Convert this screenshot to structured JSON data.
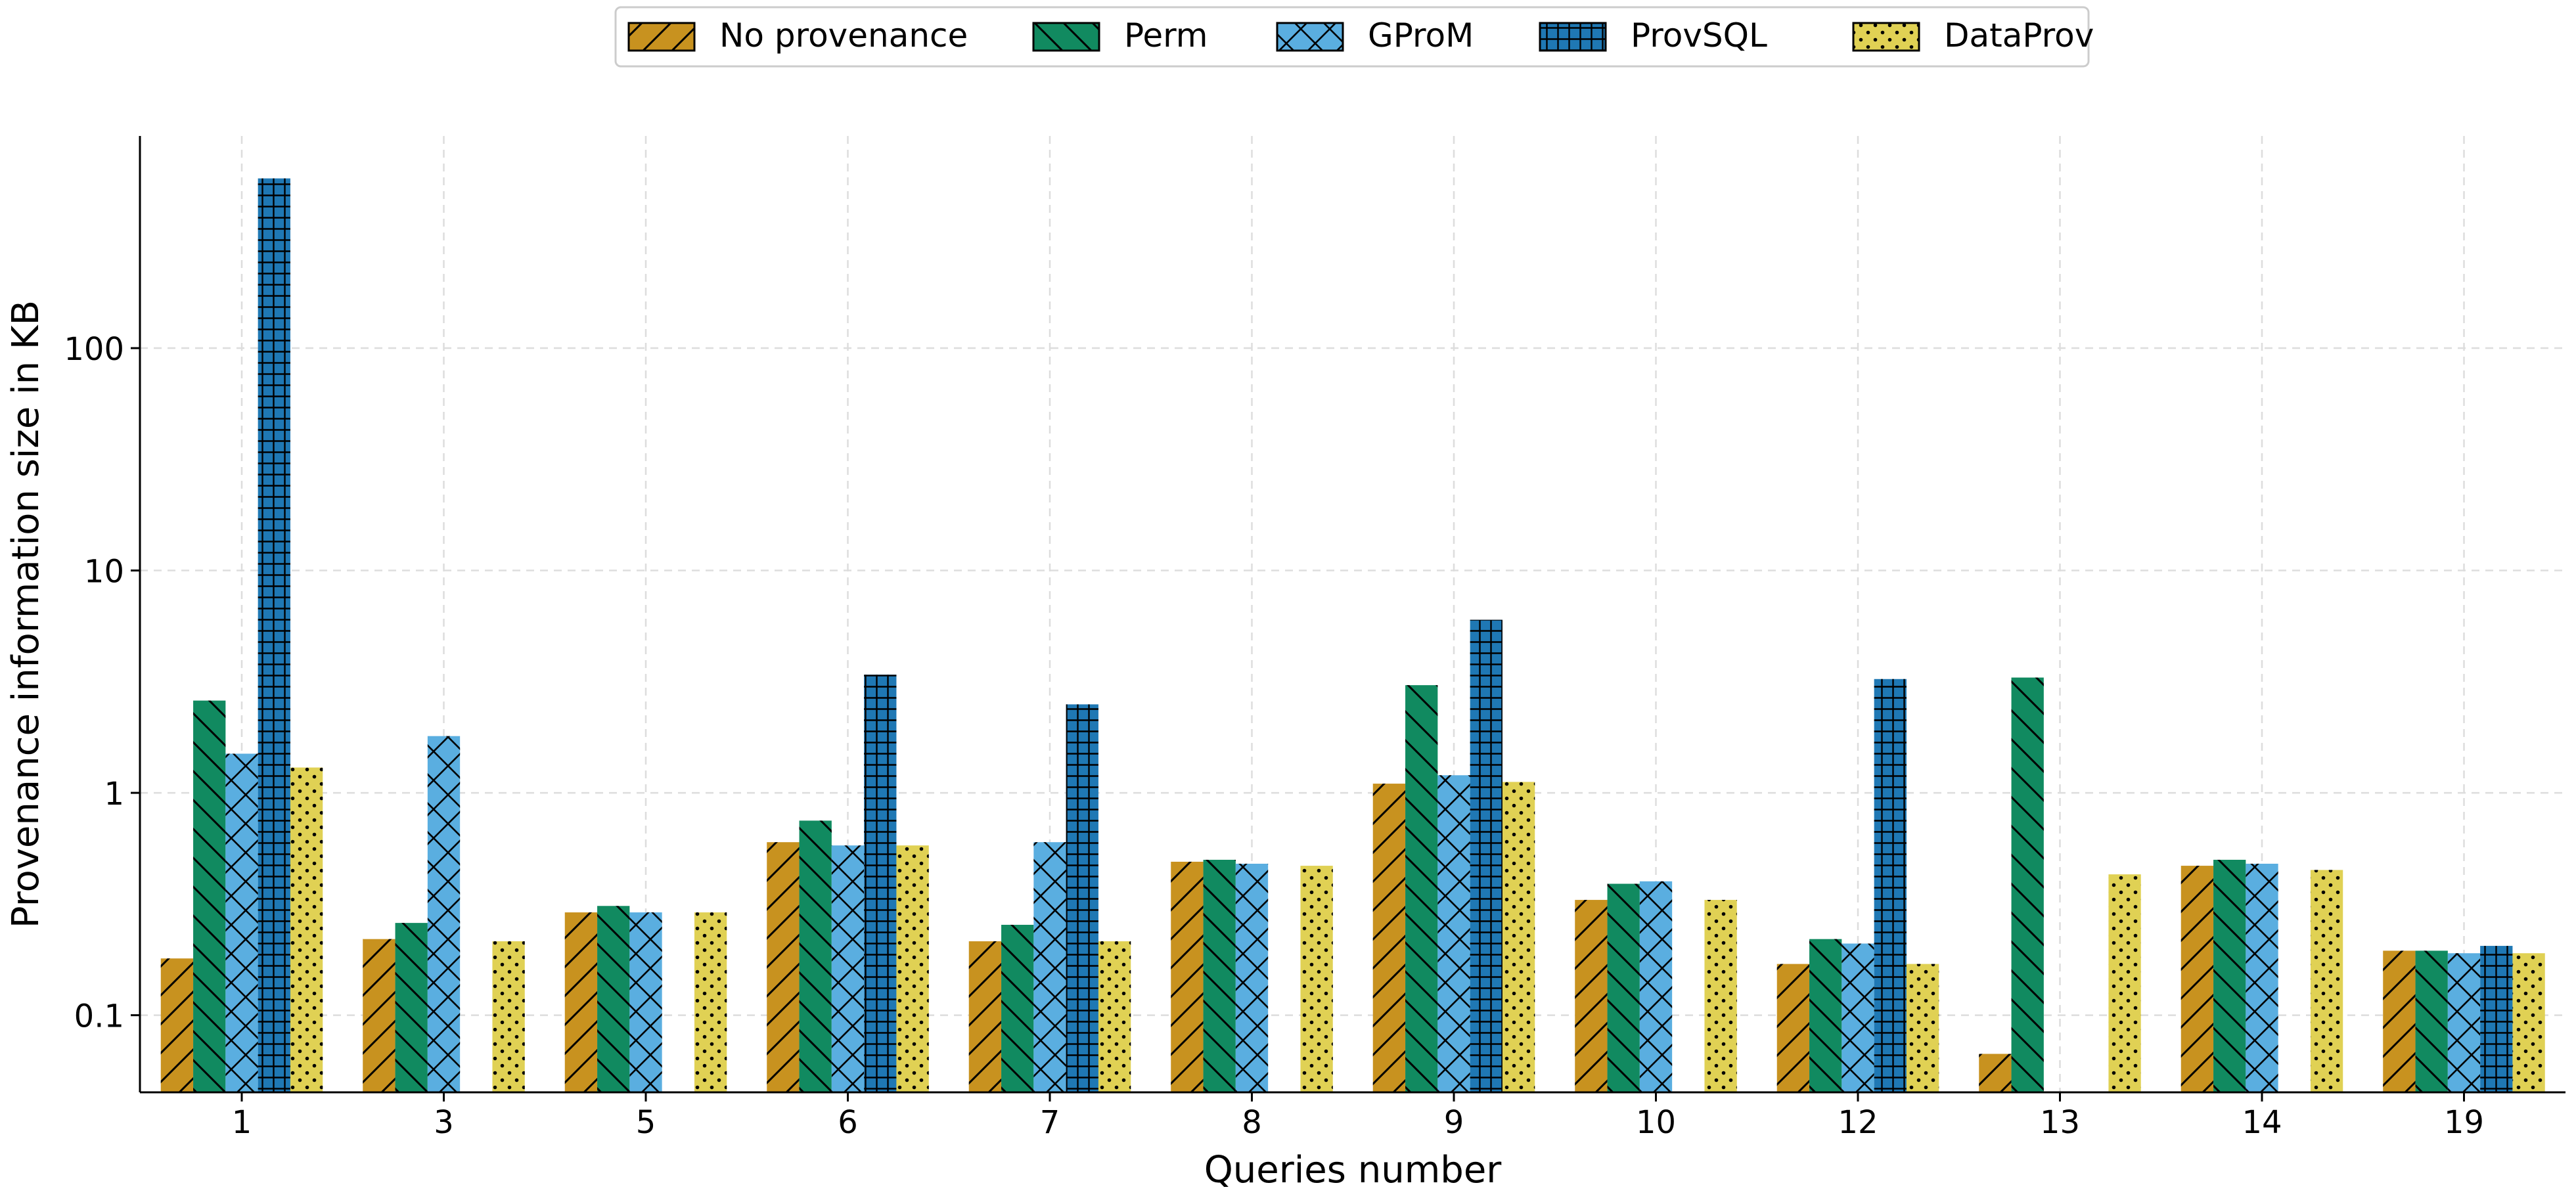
{
  "chart_data": {
    "type": "bar",
    "title": "",
    "xlabel": "Queries number",
    "ylabel": "Provenance information size in KB",
    "y_scale": "log",
    "ylim": [
      0.045,
      900
    ],
    "yticks": [
      0.1,
      1,
      10,
      100
    ],
    "ytick_labels": [
      "0.1",
      "1",
      "10",
      "100"
    ],
    "grid": true,
    "legend_position": "top-center",
    "categories": [
      "1",
      "3",
      "5",
      "6",
      "7",
      "8",
      "9",
      "10",
      "12",
      "13",
      "14",
      "19"
    ],
    "series": [
      {
        "name": "No provenance",
        "color": "#c8921f",
        "pattern": "diagonal",
        "values": [
          0.18,
          0.22,
          0.29,
          0.6,
          0.215,
          0.49,
          1.1,
          0.33,
          0.17,
          0.067,
          0.47,
          0.195
        ]
      },
      {
        "name": "Perm",
        "color": "#118a60",
        "pattern": "back-diagonal",
        "values": [
          2.6,
          0.26,
          0.31,
          0.75,
          0.255,
          0.5,
          3.05,
          0.39,
          0.22,
          3.3,
          0.5,
          0.195
        ]
      },
      {
        "name": "GProM",
        "color": "#5aaee0",
        "pattern": "cross",
        "values": [
          1.5,
          1.8,
          0.29,
          0.58,
          0.6,
          0.48,
          1.2,
          0.4,
          0.21,
          null,
          0.48,
          0.19
        ]
      },
      {
        "name": "ProvSQL",
        "color": "#1f78b4",
        "pattern": "grid",
        "values": [
          580,
          null,
          null,
          3.4,
          2.5,
          null,
          6.0,
          null,
          3.25,
          null,
          null,
          0.205
        ]
      },
      {
        "name": "DataProv",
        "color": "#e0d154",
        "pattern": "dots",
        "values": [
          1.3,
          0.215,
          0.29,
          0.58,
          0.215,
          0.47,
          1.12,
          0.33,
          0.17,
          0.43,
          0.45,
          0.19
        ]
      }
    ]
  }
}
